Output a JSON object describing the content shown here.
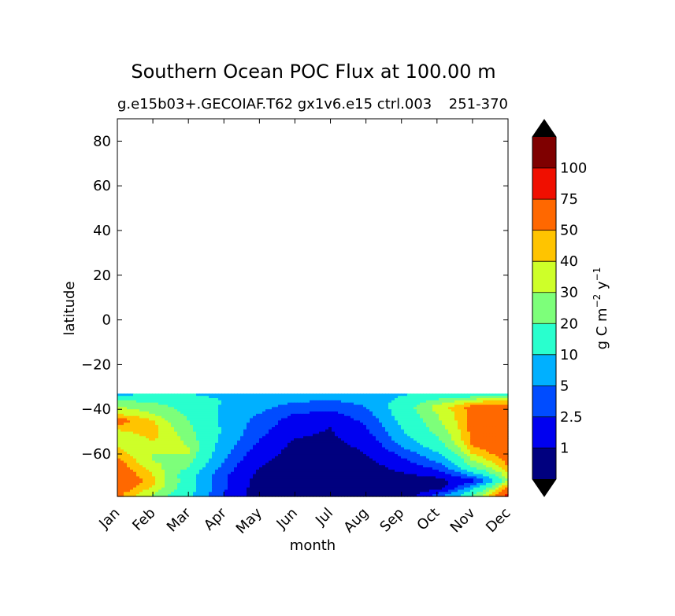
{
  "chart_data": {
    "type": "heatmap",
    "title": "Southern Ocean POC Flux at 100.00 m",
    "subtitle": "g.e15b03+.GECOIAF.T62 gx1v6.e15 ctrl.003",
    "subtitle_right": "251-370",
    "xlabel": "month",
    "ylabel": "latitude",
    "x_categories": [
      "Jan",
      "Feb",
      "Mar",
      "Apr",
      "May",
      "Jun",
      "Jul",
      "Aug",
      "Sep",
      "Oct",
      "Nov",
      "Dec"
    ],
    "ylim": [
      -79,
      90
    ],
    "yticks": [
      "−60",
      "−40",
      "−20",
      "0",
      "20",
      "40",
      "60",
      "80"
    ],
    "ytick_values": [
      -60,
      -40,
      -20,
      0,
      20,
      40,
      60,
      80
    ],
    "data_lat_range": [
      -79,
      -33
    ],
    "grid": false,
    "colorbar": {
      "label": "g C m⁻² y⁻¹",
      "label_main": "g C m",
      "label_exp1": "−2",
      "label_y": " y",
      "label_exp2": "−1",
      "levels": [
        1,
        2.5,
        5,
        10,
        20,
        30,
        40,
        50,
        75,
        100
      ],
      "tick_labels": [
        "1",
        "2.5",
        "5",
        "10",
        "20",
        "30",
        "40",
        "50",
        "75",
        "100"
      ],
      "colors": [
        "#00007f",
        "#0000f0",
        "#004cff",
        "#00b0ff",
        "#29ffce",
        "#7dff7a",
        "#ceff29",
        "#ffc400",
        "#ff6800",
        "#f00f00",
        "#7f0000"
      ],
      "extend": "both",
      "under_color": "#000000",
      "over_color": "#000000"
    },
    "field": {
      "description_rows_latitudes": [
        -33,
        -36,
        -39,
        -42,
        -45,
        -48,
        -51,
        -54,
        -57,
        -60,
        -63,
        -66,
        -69,
        -72,
        -75,
        -78
      ],
      "values": [
        [
          8,
          10,
          10,
          8,
          6,
          5.5,
          5,
          6,
          9,
          12,
          12,
          12
        ],
        [
          20,
          18,
          14,
          10,
          7,
          5.5,
          5,
          6,
          12,
          22,
          35,
          45
        ],
        [
          30,
          25,
          16,
          9,
          6,
          4,
          3.5,
          5,
          15,
          35,
          55,
          55
        ],
        [
          40,
          30,
          18,
          9,
          5,
          2.5,
          2,
          4,
          14,
          30,
          55,
          60
        ],
        [
          60,
          40,
          20,
          9,
          4,
          1.8,
          1.5,
          3,
          12,
          28,
          55,
          60
        ],
        [
          45,
          45,
          22,
          9,
          3.5,
          1.5,
          1,
          2.5,
          10,
          25,
          55,
          60
        ],
        [
          35,
          45,
          25,
          9,
          3,
          1.2,
          0.9,
          2,
          9,
          22,
          55,
          60
        ],
        [
          30,
          40,
          28,
          8,
          2.5,
          0.9,
          0.8,
          1.5,
          7,
          18,
          55,
          60
        ],
        [
          40,
          35,
          30,
          7,
          2,
          0.8,
          0.7,
          1.2,
          5,
          14,
          50,
          60
        ],
        [
          45,
          30,
          30,
          6,
          1.5,
          0.7,
          0.6,
          1,
          3,
          9,
          40,
          60
        ],
        [
          55,
          30,
          25,
          5,
          1.2,
          0.6,
          0.5,
          0.8,
          2,
          6,
          30,
          55
        ],
        [
          60,
          35,
          20,
          4,
          1,
          0.5,
          0.5,
          0.6,
          1.5,
          3,
          20,
          50
        ],
        [
          65,
          40,
          15,
          3,
          0.8,
          0.5,
          0.4,
          0.5,
          0.9,
          1.5,
          8,
          40
        ],
        [
          70,
          45,
          15,
          3,
          0.7,
          0.4,
          0.4,
          0.4,
          0.5,
          0.7,
          2,
          30
        ],
        [
          65,
          40,
          15,
          3,
          0.6,
          0.4,
          0.4,
          0.4,
          0.4,
          0.5,
          8,
          60
        ],
        [
          55,
          30,
          12,
          2.5,
          0.6,
          0.4,
          0.4,
          0.4,
          0.4,
          3,
          20,
          80
        ]
      ]
    }
  }
}
